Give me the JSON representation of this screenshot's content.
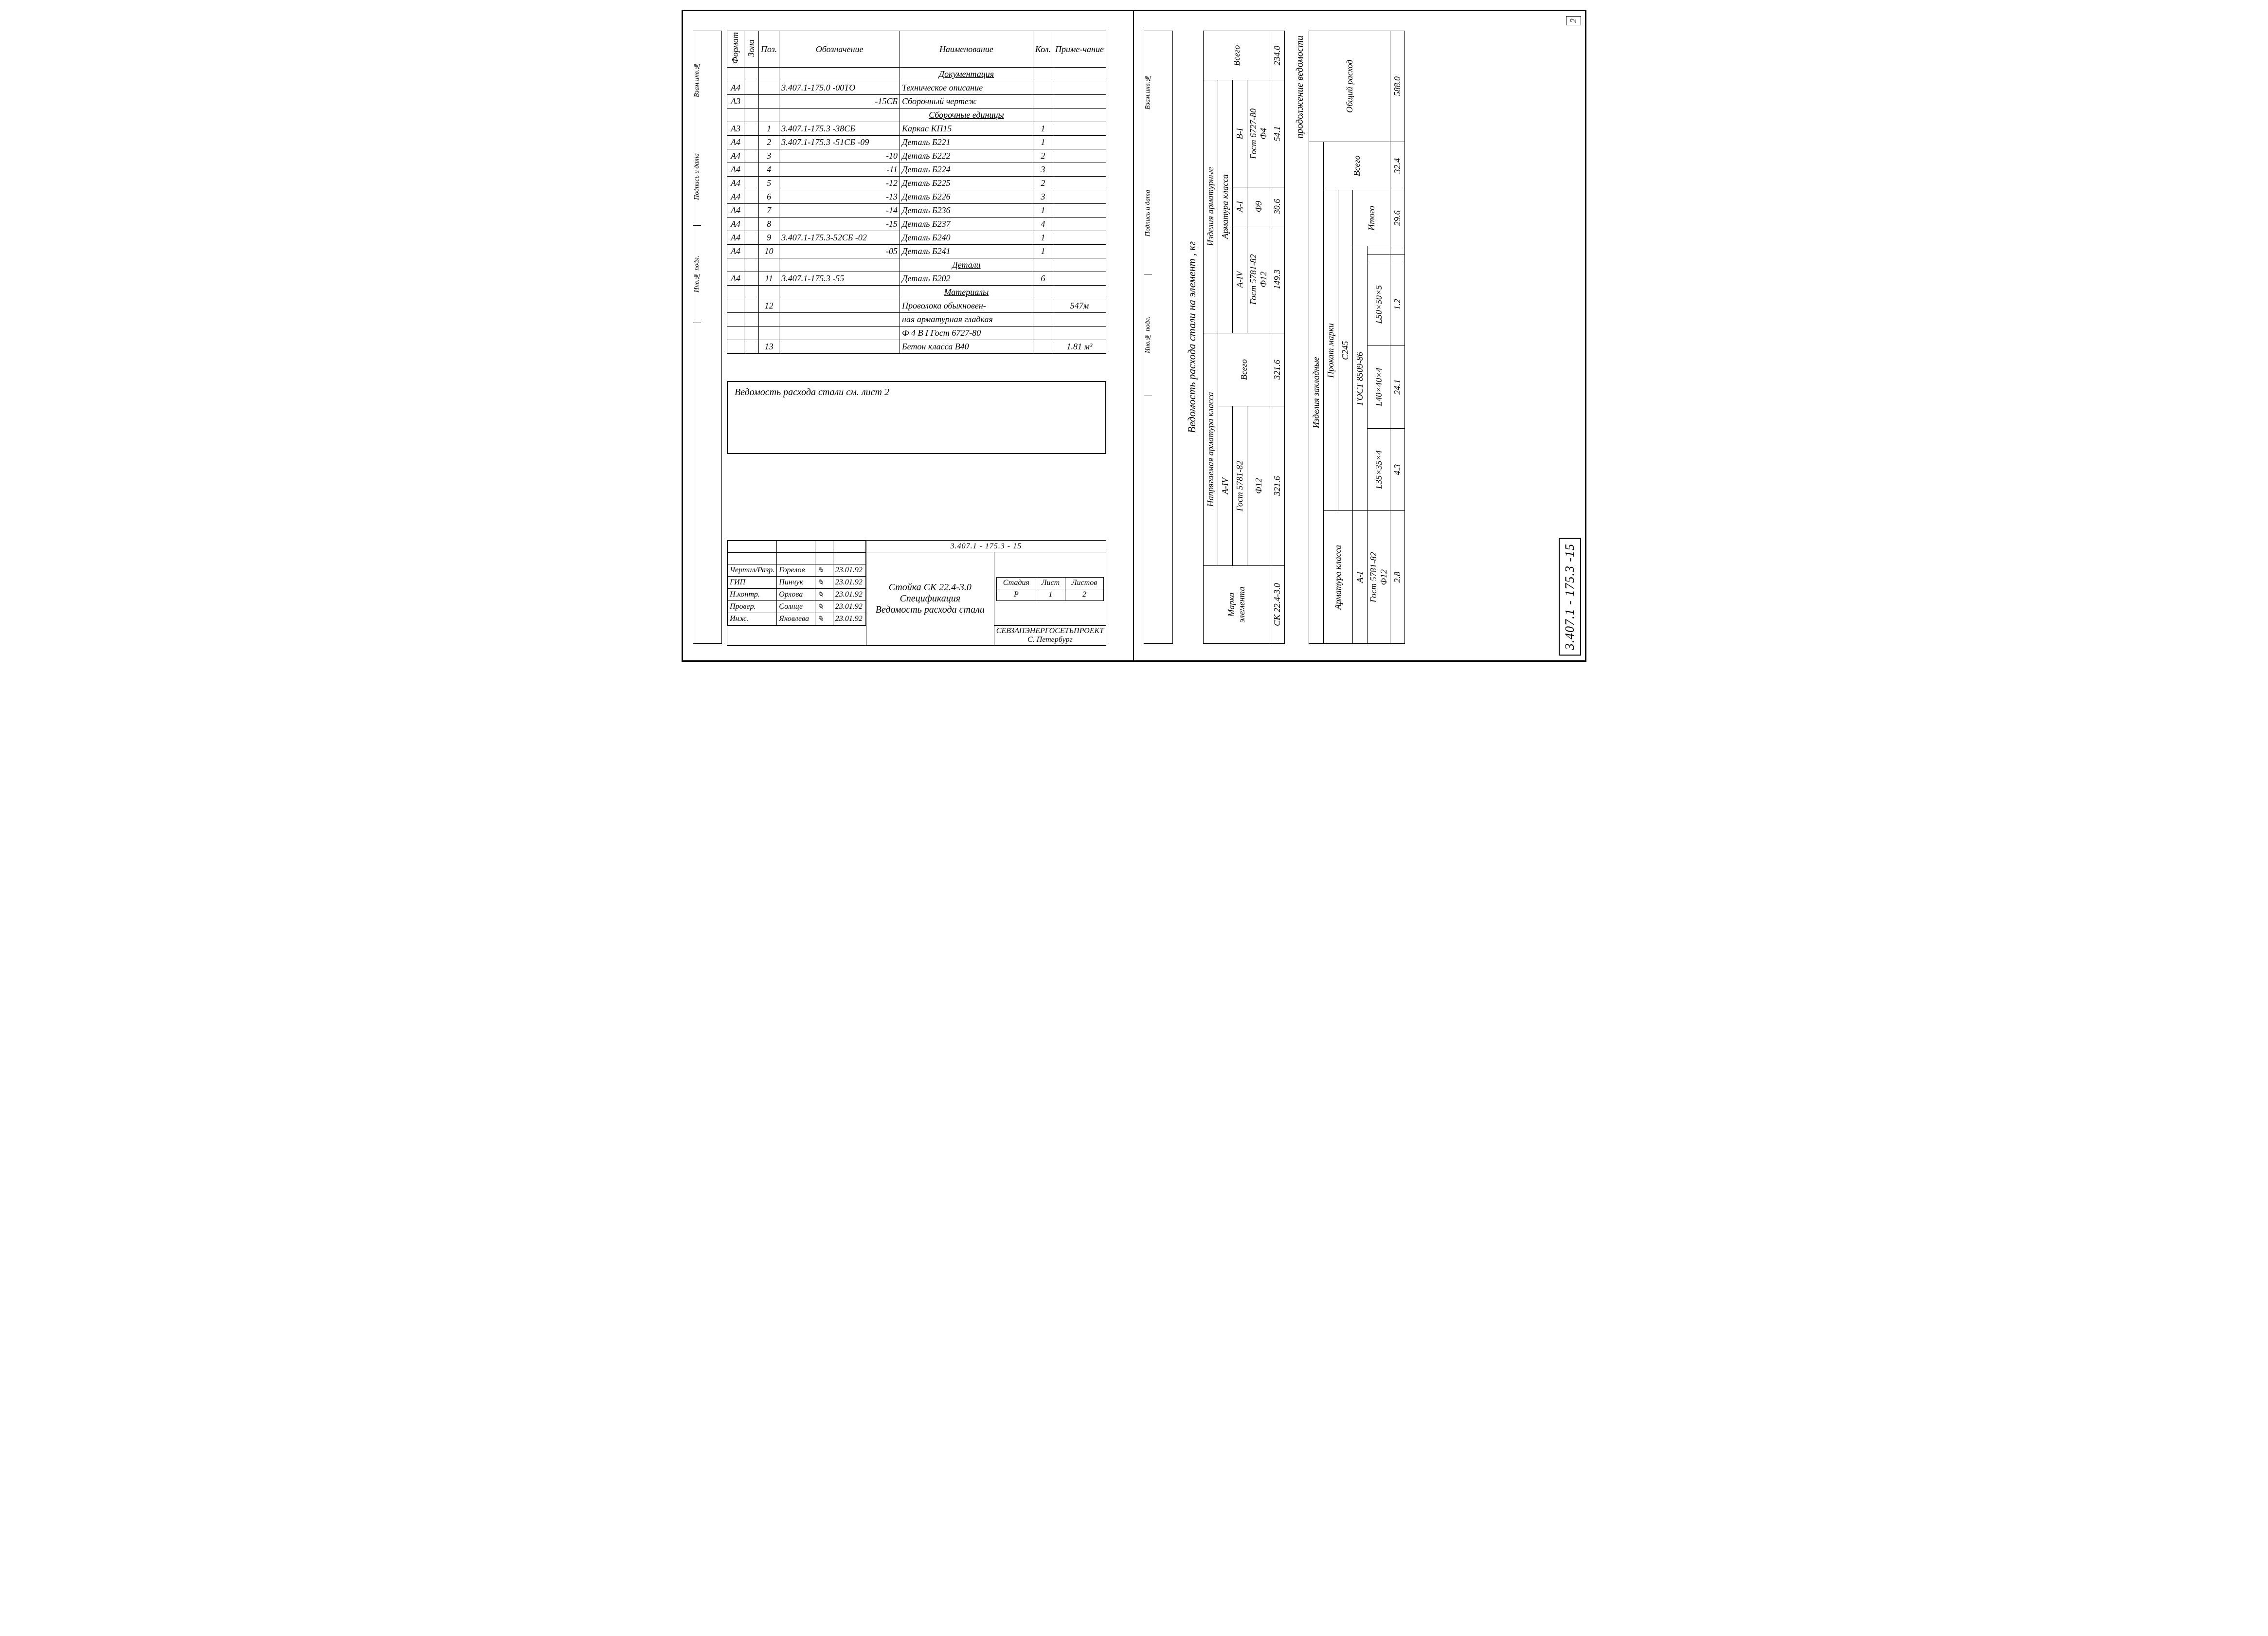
{
  "doc_number": "3.407.1 - 175.3 - 15",
  "doc_number_right": "3.407.1 - 175.3 -15",
  "page_right": "2",
  "spec": {
    "headers": {
      "format": "Формат",
      "zone": "Зона",
      "pos": "Поз.",
      "desig": "Обозначение",
      "name": "Наименование",
      "qty": "Кол.",
      "note": "Приме-чание"
    },
    "sections": [
      {
        "title": "Документация",
        "rows": [
          {
            "format": "А4",
            "zone": "",
            "pos": "",
            "desig": "3.407.1-175.0 -00ТО",
            "name": "Техническое описание",
            "qty": "",
            "note": ""
          },
          {
            "format": "А3",
            "zone": "",
            "pos": "",
            "desig": "-15СБ",
            "name": "Сборочный чертеж",
            "qty": "",
            "note": ""
          }
        ]
      },
      {
        "title": "Сборочные единицы",
        "rows": [
          {
            "format": "А3",
            "zone": "",
            "pos": "1",
            "desig": "3.407.1-175.3 -38СБ",
            "name": "Каркас   КП15",
            "qty": "1",
            "note": ""
          },
          {
            "format": "А4",
            "zone": "",
            "pos": "2",
            "desig": "3.407.1-175.3 -51СБ -09",
            "name": "Деталь   Б221",
            "qty": "1",
            "note": ""
          },
          {
            "format": "А4",
            "zone": "",
            "pos": "3",
            "desig": "-10",
            "name": "Деталь   Б222",
            "qty": "2",
            "note": ""
          },
          {
            "format": "А4",
            "zone": "",
            "pos": "4",
            "desig": "-11",
            "name": "Деталь   Б224",
            "qty": "3",
            "note": ""
          },
          {
            "format": "А4",
            "zone": "",
            "pos": "5",
            "desig": "-12",
            "name": "Деталь   Б225",
            "qty": "2",
            "note": ""
          },
          {
            "format": "А4",
            "zone": "",
            "pos": "6",
            "desig": "-13",
            "name": "Деталь   Б226",
            "qty": "3",
            "note": ""
          },
          {
            "format": "А4",
            "zone": "",
            "pos": "7",
            "desig": "-14",
            "name": "Деталь   Б236",
            "qty": "1",
            "note": ""
          },
          {
            "format": "А4",
            "zone": "",
            "pos": "8",
            "desig": "-15",
            "name": "Деталь   Б237",
            "qty": "4",
            "note": ""
          },
          {
            "format": "А4",
            "zone": "",
            "pos": "9",
            "desig": "3.407.1-175.3-52СБ -02",
            "name": "Деталь   Б240",
            "qty": "1",
            "note": ""
          },
          {
            "format": "А4",
            "zone": "",
            "pos": "10",
            "desig": "-05",
            "name": "Деталь   Б241",
            "qty": "1",
            "note": ""
          }
        ]
      },
      {
        "title": "Детали",
        "rows": [
          {
            "format": "А4",
            "zone": "",
            "pos": "11",
            "desig": "3.407.1-175.3   -55",
            "name": "Деталь  Б202",
            "qty": "6",
            "note": ""
          }
        ]
      },
      {
        "title": "Материалы",
        "rows": [
          {
            "format": "",
            "zone": "",
            "pos": "12",
            "desig": "",
            "name": "Проволока обыкновен-",
            "qty": "",
            "note": "547м"
          },
          {
            "format": "",
            "zone": "",
            "pos": "",
            "desig": "",
            "name": "ная арматурная гладкая",
            "qty": "",
            "note": ""
          },
          {
            "format": "",
            "zone": "",
            "pos": "",
            "desig": "",
            "name": "Ф 4 В I Гост 6727-80",
            "qty": "",
            "note": ""
          },
          {
            "format": "",
            "zone": "",
            "pos": "13",
            "desig": "",
            "name": "Бетон класса   В40",
            "qty": "",
            "note": "1.81 м³"
          }
        ]
      }
    ]
  },
  "note_text": "Ведомость расхода стали см. лист 2",
  "title_block": {
    "roles": [
      {
        "role": "Чертил/Разр.",
        "name": "Горелов",
        "date": "23.01.92"
      },
      {
        "role": "ГИП",
        "name": "Пинчук",
        "date": "23.01.92"
      },
      {
        "role": "Н.контр.",
        "name": "Орлова",
        "date": "23.01.92"
      },
      {
        "role": "Провер.",
        "name": "Солнце",
        "date": "23.01.92"
      },
      {
        "role": "Инж.",
        "name": "Яковлева",
        "date": "23.01.92"
      }
    ],
    "product": "Стойка СК 22.4-3.0",
    "doc_kind1": "Спецификация",
    "doc_kind2": "Ведомость расхода стали",
    "stage_h": "Стадия",
    "sheet_h": "Лист",
    "sheets_h": "Листов",
    "stage": "Р",
    "sheet": "1",
    "sheets": "2",
    "org": "СЕВЗАПЭНЕРГОСЕТЬПРОЕКТ",
    "city": "С. Петербург"
  },
  "binding_left": [
    "Инв.№ подл.",
    "Подпись и дата",
    "Взам.инв.№"
  ],
  "binding_right": [
    "Инв.№ подл.",
    "Подпись и дата",
    "Взам.инв.№"
  ],
  "steel_title": "Ведомость расхода стали на элемент , кг",
  "cont_label": "продолжение ведомости",
  "steel_table": {
    "group1": "Напрягаемая арматура класса",
    "group2": "Изделия арматурные",
    "sub2": "Арматура класса",
    "col_mark_h1": "Марка",
    "col_mark_h2": "элемента",
    "classes": [
      "А-IV",
      "",
      "А-IV",
      "А-I",
      "В-I"
    ],
    "gosts": [
      "Гост 5781-82",
      "Всего",
      "Гост 5781-82",
      "",
      "Гост 6727-80"
    ],
    "diams": [
      "Ф12",
      "",
      "Ф12",
      "Ф9",
      "Ф4"
    ],
    "row_mark": "СК 22.4-3.0",
    "vals": [
      "321.6",
      "321.6",
      "149.3",
      "30.6",
      "54.1"
    ],
    "total_h": "Всего",
    "total_v": "234.0"
  },
  "embed_title": "Изделия закладные",
  "embed_sub": "Прокат марки",
  "embed_table": {
    "left_h1": "Арматура класса",
    "left_h2": "А-I",
    "left_gost": "Гост 5781-82",
    "left_diam": "Ф12",
    "left_val": "2.8",
    "mid_h": "С245",
    "mid_gost": "ГОСТ 8509-86",
    "profiles": [
      "L35×35×4",
      "L40×40×4",
      "L50×50×5"
    ],
    "pvals": [
      "4.3",
      "24.1",
      "1.2"
    ],
    "itogo_h": "Итого",
    "itogo_v": "29.6",
    "vsego_h": "Всего",
    "vsego_v": "32.4",
    "grand_h": "Общий расход",
    "grand_v": "588.0"
  }
}
